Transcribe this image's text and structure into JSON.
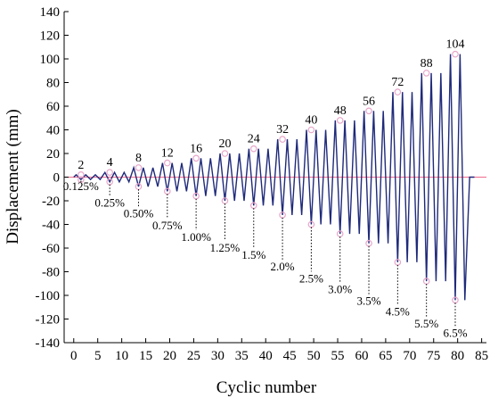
{
  "chart_data": {
    "type": "line",
    "title": "",
    "xlabel": "Cyclic number",
    "ylabel": "Displacement (mm)",
    "xlim": [
      -2,
      86
    ],
    "ylim": [
      -140,
      140
    ],
    "xticks": [
      0,
      5,
      10,
      15,
      20,
      25,
      30,
      35,
      40,
      45,
      50,
      55,
      60,
      65,
      70,
      75,
      80,
      85
    ],
    "yticks": [
      -140,
      -120,
      -100,
      -80,
      -60,
      -40,
      -20,
      0,
      20,
      40,
      60,
      80,
      100,
      120,
      140
    ],
    "grid": false,
    "colors": {
      "series": "#1f2a7a",
      "zero_line": "#f06a8a",
      "peak_marker": "#e7a6c9",
      "leader": "#000000"
    },
    "series": [
      {
        "x": [
          0,
          0.5,
          1.5,
          2.5,
          3.5,
          4.5,
          5.5,
          6.5,
          7.5,
          8.5,
          9.5,
          10.5,
          11.5,
          12.5,
          13.5,
          14.5,
          15.5,
          16.5,
          17.5,
          18.5,
          19.5,
          20.5,
          21.5,
          22.5,
          23.5,
          24.5,
          25.5,
          26.5,
          27.5,
          28.5,
          29.5,
          30.5,
          31.5,
          32.5,
          33.5,
          34.5,
          35.5,
          36.5,
          37.5,
          38.5,
          39.5,
          40.5,
          41.5,
          42.5,
          43.5,
          44.5,
          45.5,
          46.5,
          47.5,
          48.5,
          49.5,
          50.5,
          51.5,
          52.5,
          53.5,
          54.5,
          55.5,
          56.5,
          57.5,
          58.5,
          59.5,
          60.5,
          61.5,
          62.5,
          63.5,
          64.5,
          65.5,
          66.5,
          67.5,
          68.5,
          69.5,
          70.5,
          71.5,
          72.5,
          73.5,
          74.5,
          75.5,
          76.5,
          77.5,
          78.5,
          79.5,
          80.5,
          81.5,
          82.5,
          83.5
        ],
        "y": [
          0,
          2,
          -2,
          2,
          -2,
          2,
          -2,
          4,
          -4,
          4,
          -4,
          4,
          -4,
          8,
          -8,
          8,
          -8,
          8,
          -8,
          12,
          -12,
          12,
          -12,
          12,
          -12,
          16,
          -16,
          16,
          -16,
          16,
          -16,
          20,
          -20,
          20,
          -20,
          20,
          -20,
          24,
          -24,
          24,
          -24,
          24,
          -24,
          32,
          -32,
          32,
          -32,
          32,
          -32,
          40,
          -40,
          40,
          -40,
          40,
          -40,
          48,
          -48,
          48,
          -48,
          48,
          -48,
          56,
          -56,
          56,
          -56,
          56,
          -56,
          72,
          -72,
          72,
          -72,
          72,
          -72,
          88,
          -88,
          88,
          -88,
          88,
          -88,
          104,
          -104,
          104,
          -104,
          0,
          0
        ]
      }
    ],
    "amplitude_labels": [
      {
        "x": 1.5,
        "y": 2,
        "text": "2"
      },
      {
        "x": 7.5,
        "y": 4,
        "text": "4"
      },
      {
        "x": 13.5,
        "y": 8,
        "text": "8"
      },
      {
        "x": 19.5,
        "y": 12,
        "text": "12"
      },
      {
        "x": 25.5,
        "y": 16,
        "text": "16"
      },
      {
        "x": 31.5,
        "y": 20,
        "text": "20"
      },
      {
        "x": 37.5,
        "y": 24,
        "text": "24"
      },
      {
        "x": 43.5,
        "y": 32,
        "text": "32"
      },
      {
        "x": 49.5,
        "y": 40,
        "text": "40"
      },
      {
        "x": 55.5,
        "y": 48,
        "text": "48"
      },
      {
        "x": 61.5,
        "y": 56,
        "text": "56"
      },
      {
        "x": 67.5,
        "y": 72,
        "text": "72"
      },
      {
        "x": 73.5,
        "y": 88,
        "text": "88"
      },
      {
        "x": 79.5,
        "y": 104,
        "text": "104"
      }
    ],
    "drift_labels": [
      {
        "x": 1.5,
        "y": -2,
        "text": "0.125%",
        "y_text": -11
      },
      {
        "x": 7.5,
        "y": -4,
        "text": "0.25%",
        "y_text": -25
      },
      {
        "x": 13.5,
        "y": -8,
        "text": "0.50%",
        "y_text": -34
      },
      {
        "x": 19.5,
        "y": -12,
        "text": "0.75%",
        "y_text": -44
      },
      {
        "x": 25.5,
        "y": -16,
        "text": "1.00%",
        "y_text": -54
      },
      {
        "x": 31.5,
        "y": -20,
        "text": "1.25%",
        "y_text": -63
      },
      {
        "x": 37.5,
        "y": -24,
        "text": "1.5%",
        "y_text": -69
      },
      {
        "x": 43.5,
        "y": -32,
        "text": "2.0%",
        "y_text": -79
      },
      {
        "x": 49.5,
        "y": -40,
        "text": "2.5%",
        "y_text": -89
      },
      {
        "x": 55.5,
        "y": -48,
        "text": "3.0%",
        "y_text": -98
      },
      {
        "x": 61.5,
        "y": -56,
        "text": "3.5%",
        "y_text": -108
      },
      {
        "x": 67.5,
        "y": -72,
        "text": "4.5%",
        "y_text": -117
      },
      {
        "x": 73.5,
        "y": -88,
        "text": "5.5%",
        "y_text": -127
      },
      {
        "x": 79.5,
        "y": -104,
        "text": "6.5%",
        "y_text": -135
      }
    ]
  }
}
